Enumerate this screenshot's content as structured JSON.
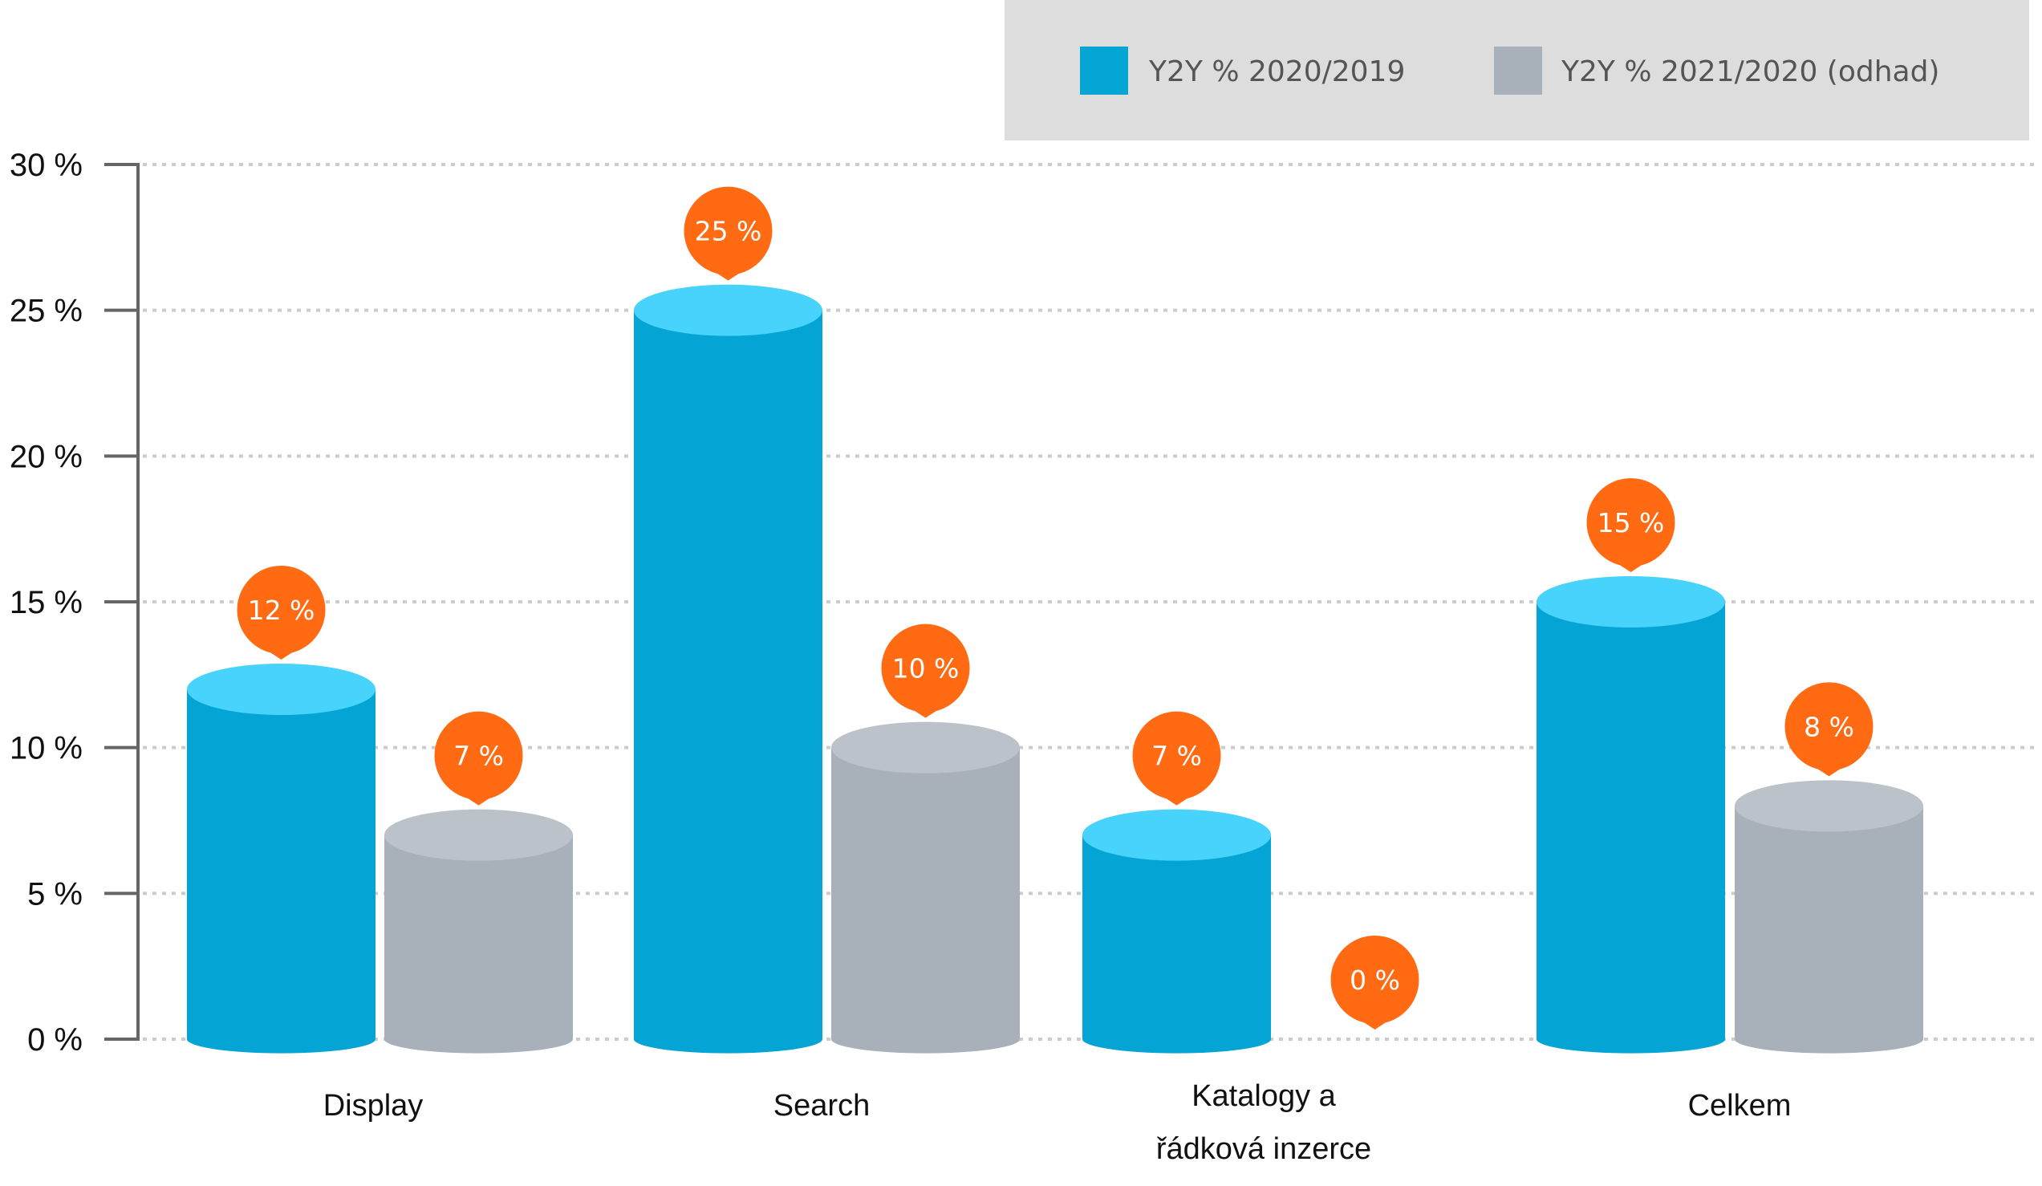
{
  "chart_data": {
    "type": "bar",
    "categories": [
      "Display",
      "Search",
      "Katalogy a\nřádková inzerce",
      "Celkem"
    ],
    "series": [
      {
        "name": "Y2Y % 2020/2019",
        "values": [
          12,
          25,
          7,
          15
        ],
        "labels": [
          "12 %",
          "25 %",
          "7 %",
          "15 %"
        ]
      },
      {
        "name": "Y2Y % 2021/2020 (odhad)",
        "values": [
          7,
          10,
          0,
          8
        ],
        "labels": [
          "7 %",
          "10 %",
          "0 %",
          "8 %"
        ]
      }
    ],
    "ylim": [
      0,
      30
    ],
    "yticks": [
      0,
      5,
      10,
      15,
      20,
      25,
      30
    ],
    "ytick_labels": [
      "0 %",
      "5 %",
      "10 %",
      "15 %",
      "20 %",
      "25 %",
      "30 %"
    ],
    "grid": true,
    "legend_position": "top-right",
    "colors": {
      "series1_body": "#04A5D5",
      "series1_top": "#48D3FC",
      "series2_body": "#A8B1BA",
      "series2_top": "#BCC2CA",
      "bubble": "#FF6A13",
      "legend_bg": "#DDDDDD",
      "grid": "#CCCCCC",
      "axis": "#666666"
    }
  }
}
